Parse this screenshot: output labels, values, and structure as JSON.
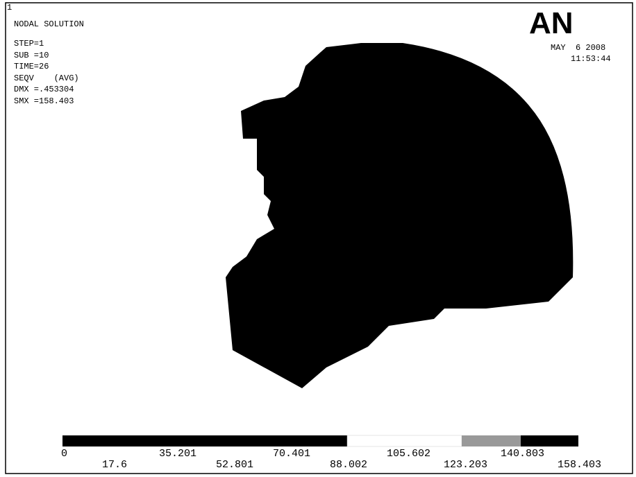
{
  "window_id": "1",
  "info": {
    "title": "NODAL SOLUTION",
    "lines": [
      "STEP=1",
      "SUB =10",
      "TIME=26",
      "SEQV    (AVG)",
      "DMX =.453304",
      "SMX =158.403"
    ]
  },
  "logo": "AN",
  "date": "MAY  6 2008",
  "time": "11:53:44",
  "legend": {
    "labels": [
      "0",
      "17.6",
      "35.201",
      "52.801",
      "70.401",
      "88.002",
      "105.602",
      "123.203",
      "140.803",
      "158.403"
    ]
  }
}
